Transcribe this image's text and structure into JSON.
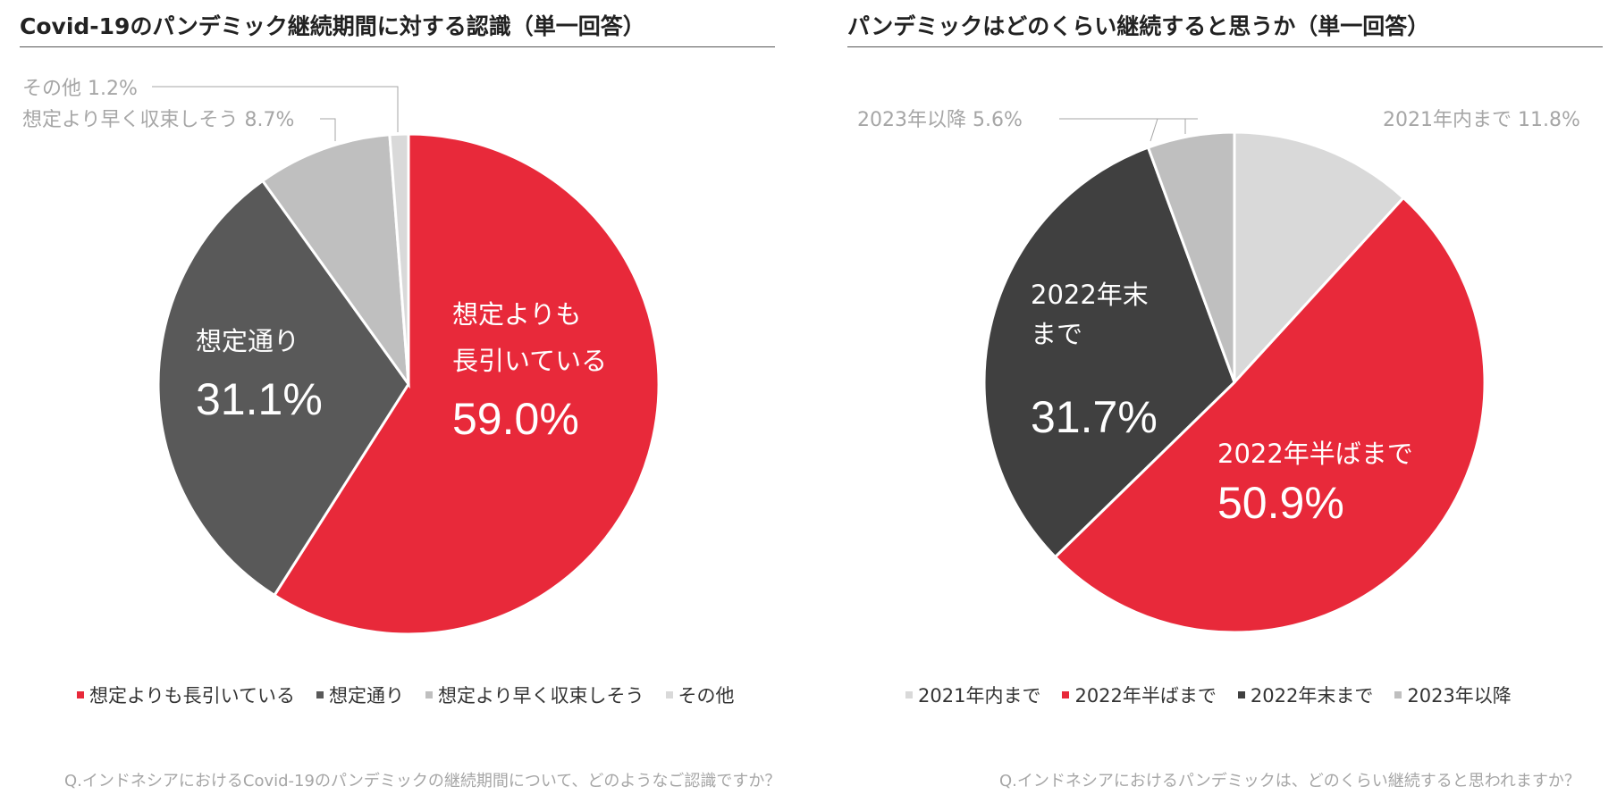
{
  "left": {
    "title": "Covid-19のパンデミック継続期間に対する認識（単一回答）",
    "question": "Q.インドネシアにおけるCovid-19のパンデミックの継続期間について、どのようなご認識ですか？",
    "legend": [
      "想定よりも長引いている",
      "想定通り",
      "想定より早く収束しそう",
      "その他"
    ]
  },
  "right": {
    "title": "パンデミックはどのくらい継続すると思うか（単一回答）",
    "question": "Q.インドネシアにおけるパンデミックは、どのくらい継続すると思われますか？",
    "legend": [
      "2021年内まで",
      "2022年半ばまで",
      "2022年末まで",
      "2023年以降"
    ]
  },
  "chart_data": [
    {
      "type": "pie",
      "title": "Covid-19のパンデミック継続期間に対する認識（単一回答）",
      "slices": [
        {
          "label": "想定よりも長引いている",
          "value": 59.0,
          "display": "59.0%",
          "color": "#e8293a",
          "inner_lines": [
            "想定よりも",
            "長引いている"
          ]
        },
        {
          "label": "想定通り",
          "value": 31.1,
          "display": "31.1%",
          "color": "#595959",
          "inner_lines": [
            "想定通り"
          ]
        },
        {
          "label": "想定より早く収束しそう",
          "value": 8.7,
          "display": "8.7%",
          "color": "#bfbfbf",
          "outer_label": "想定より早く収束しそう"
        },
        {
          "label": "その他",
          "value": 1.2,
          "display": "1.2%",
          "color": "#d9d9d9",
          "outer_label": "その他"
        }
      ]
    },
    {
      "type": "pie",
      "title": "パンデミックはどのくらい継続すると思うか（単一回答）",
      "slices": [
        {
          "label": "2021年内まで",
          "value": 11.8,
          "display": "11.8%",
          "color": "#d9d9d9",
          "outer_label": "2021年内まで"
        },
        {
          "label": "2022年半ばまで",
          "value": 50.9,
          "display": "50.9%",
          "color": "#e8293a",
          "inner_lines": [
            "2022年半ばまで"
          ]
        },
        {
          "label": "2022年末まで",
          "value": 31.7,
          "display": "31.7%",
          "color": "#404040",
          "inner_lines": [
            "2022年末",
            "まで"
          ]
        },
        {
          "label": "2023年以降",
          "value": 5.6,
          "display": "5.6%",
          "color": "#bfbfbf",
          "outer_label": "2023年以降"
        }
      ]
    }
  ]
}
